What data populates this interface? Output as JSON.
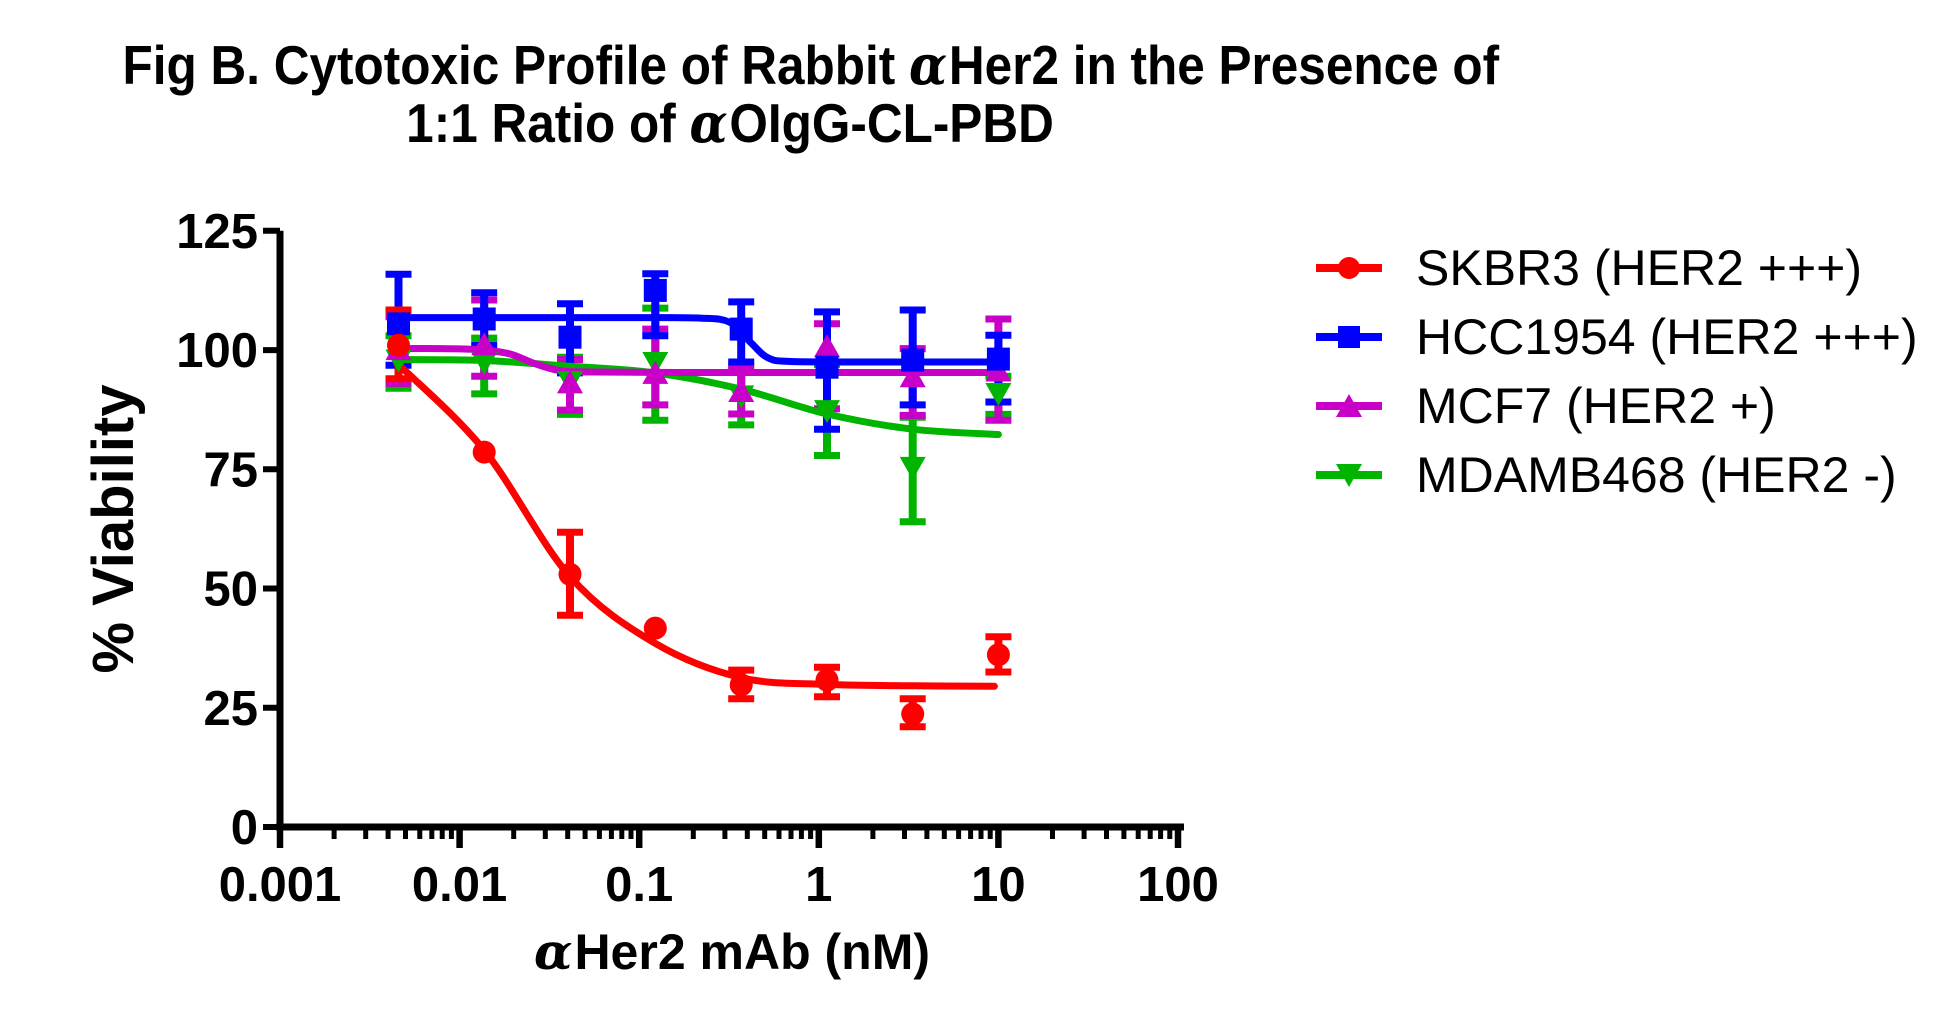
{
  "figure": {
    "title_line1_pre": "Fig B. Cytotoxic Profile of Rabbit ",
    "alpha": "α",
    "title_line1_post": "Her2 in the Presence of",
    "title_line2_pre": "1:1 Ratio of ",
    "title_line2_post": "OIgG-CL-PBD",
    "xlabel_post": "Her2 mAb (nM)",
    "ylabel": "% Viability"
  },
  "chart_data": {
    "type": "line",
    "title": "Fig B. Cytotoxic Profile of Rabbit αHer2 in the Presence of 1:1 Ratio of αOIgG-CL-PBD",
    "xlabel": "αHer2 mAb (nM)",
    "ylabel": "% Viability",
    "x_scale": "log",
    "xlim": [
      0.001,
      100
    ],
    "ylim": [
      0,
      125
    ],
    "grid": false,
    "legend_position": "right",
    "x_ticks": [
      {
        "value": 0.001,
        "label": "0.001"
      },
      {
        "value": 0.01,
        "label": "0.01"
      },
      {
        "value": 0.1,
        "label": "0.1"
      },
      {
        "value": 1,
        "label": "1"
      },
      {
        "value": 10,
        "label": "10"
      },
      {
        "value": 100,
        "label": "100"
      }
    ],
    "y_ticks": [
      {
        "value": 0,
        "label": "0"
      },
      {
        "value": 25,
        "label": "25"
      },
      {
        "value": 50,
        "label": "50"
      },
      {
        "value": 75,
        "label": "75"
      },
      {
        "value": 100,
        "label": "100"
      },
      {
        "value": 125,
        "label": "125"
      }
    ],
    "x": [
      0.00457,
      0.0137,
      0.0412,
      0.123,
      0.37,
      1.111,
      3.333,
      10
    ],
    "series": [
      {
        "name": "SKBR3 (HER2 +++)",
        "color": "#FF0000",
        "marker": "circle",
        "values": [
          101,
          78.6,
          53,
          41.7,
          29.8,
          30.8,
          23.7,
          36.1
        ],
        "err_up": [
          7.4,
          0,
          8.8,
          0,
          3.1,
          2.7,
          3.2,
          3.8
        ],
        "err_down": [
          7.0,
          0,
          8.6,
          0,
          2.9,
          3.5,
          2.7,
          3.6
        ],
        "fit": [
          [
            0.00457,
            97
          ],
          [
            0.0137,
            79
          ],
          [
            0.0412,
            52.5
          ],
          [
            0.123,
            38.5
          ],
          [
            0.37,
            31.3
          ],
          [
            1.111,
            29.9
          ],
          [
            3.333,
            29.6
          ],
          [
            9.5,
            29.5
          ]
        ]
      },
      {
        "name": "HCC1954 (HER2 +++)",
        "color": "#0000FF",
        "marker": "square",
        "values": [
          105.5,
          106.5,
          102.7,
          112.5,
          104.4,
          96.4,
          97.9,
          98.1
        ],
        "err_up": [
          10.4,
          5.5,
          7.0,
          3.5,
          5.7,
          11.6,
          10.5,
          5.0
        ],
        "err_down": [
          8.7,
          5.5,
          7.5,
          9.5,
          6.9,
          13.0,
          9.4,
          9.0
        ],
        "fit": [
          [
            0.00457,
            106.8
          ],
          [
            0.02,
            106.8
          ],
          [
            0.1,
            106.8
          ],
          [
            0.22,
            106.7
          ],
          [
            0.32,
            105.8
          ],
          [
            0.42,
            101.5
          ],
          [
            0.52,
            98.4
          ],
          [
            0.7,
            97.6
          ],
          [
            2,
            97.5
          ],
          [
            5,
            97.5
          ],
          [
            10.5,
            97.5
          ]
        ]
      },
      {
        "name": "MCF7 (HER2 +)",
        "color": "#C800C8",
        "marker": "triangle-up",
        "values": [
          100,
          101,
          93,
          95,
          91.2,
          100.6,
          94.3,
          95.5
        ],
        "err_up": [
          7,
          9.5,
          5,
          9.4,
          4.8,
          4.9,
          6,
          11
        ],
        "err_down": [
          7,
          6.5,
          5.6,
          6.5,
          4.6,
          12.9,
          8,
          10.2
        ],
        "fit": [
          [
            0.00457,
            100.3
          ],
          [
            0.008,
            100.3
          ],
          [
            0.0128,
            100.1
          ],
          [
            0.019,
            99.2
          ],
          [
            0.026,
            97.2
          ],
          [
            0.036,
            95.7
          ],
          [
            0.055,
            95.4
          ],
          [
            0.2,
            95.3
          ],
          [
            1,
            95.3
          ],
          [
            10.5,
            95.3
          ]
        ]
      },
      {
        "name": "MDAMB468 (HER2 -)",
        "color": "#00B400",
        "marker": "triangle-down",
        "values": [
          98,
          97.5,
          93.5,
          97.5,
          90.5,
          87.4,
          75.5,
          91
        ],
        "err_up": [
          5,
          5,
          5,
          11.3,
          6.3,
          9.6,
          10.4,
          3.5
        ],
        "err_down": [
          6,
          6.7,
          7,
          12.2,
          6.2,
          9.5,
          11.5,
          4.5
        ],
        "fit": [
          [
            0.00457,
            98
          ],
          [
            0.0137,
            97.8
          ],
          [
            0.0412,
            96.6
          ],
          [
            0.123,
            95.2
          ],
          [
            0.37,
            91.8
          ],
          [
            1.111,
            86.6
          ],
          [
            3.333,
            83.4
          ],
          [
            10,
            82.3
          ]
        ]
      }
    ]
  }
}
